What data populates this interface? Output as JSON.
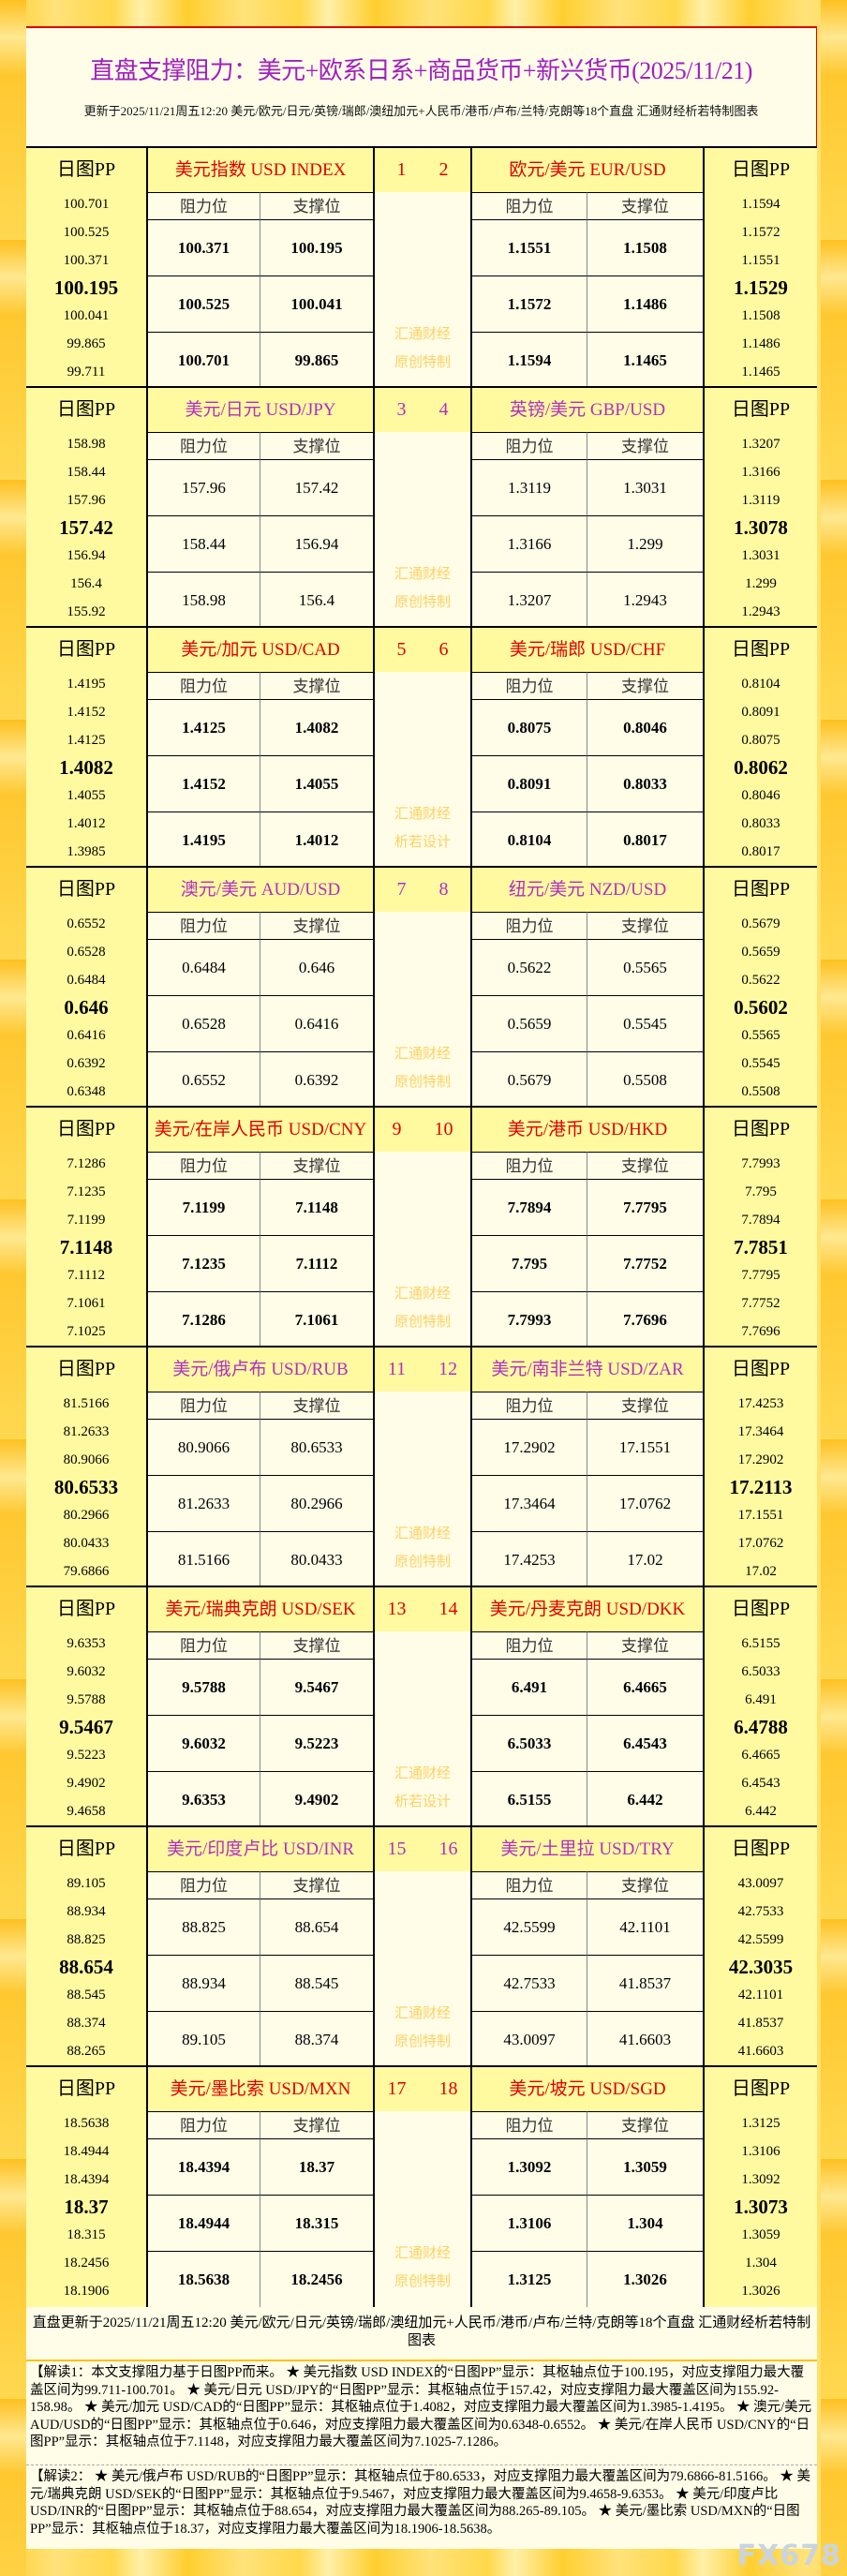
{
  "header": {
    "title": "直盘支撑阻力：美元+欧系日系+商品货币+新兴货币(2025/11/21)",
    "subtitle": "更新于2025/11/21周五12:20 美元/欧元/日元/英镑/瑞郎/澳纽加元+人民币/港币/卢布/兰特/克朗等18个直盘 汇通财经析若特制图表"
  },
  "labels": {
    "pp": "日图PP",
    "res": "阻力位",
    "sup": "支撑位"
  },
  "colors": {
    "odd_title": "#e00000",
    "even_title": "#b030c0",
    "watermark": "#ffd060"
  },
  "blocks": [
    {
      "nums": "1 2",
      "wm": [
        "汇通财经",
        "原创特制"
      ],
      "left": {
        "name": "美元指数 USD INDEX",
        "pp": [
          "100.701",
          "100.525",
          "100.371",
          "100.195",
          "100.041",
          "99.865",
          "99.711"
        ],
        "res": [
          "100.371",
          "100.525",
          "100.701"
        ],
        "sup": [
          "100.195",
          "100.041",
          "99.865"
        ]
      },
      "right": {
        "name": "欧元/美元 EUR/USD",
        "pp": [
          "1.1594",
          "1.1572",
          "1.1551",
          "1.1529",
          "1.1508",
          "1.1486",
          "1.1465"
        ],
        "res": [
          "1.1551",
          "1.1572",
          "1.1594"
        ],
        "sup": [
          "1.1508",
          "1.1486",
          "1.1465"
        ]
      }
    },
    {
      "nums": "3 4",
      "wm": [
        "汇通财经",
        "原创特制"
      ],
      "left": {
        "name": "美元/日元 USD/JPY",
        "pp": [
          "158.98",
          "158.44",
          "157.96",
          "157.42",
          "156.94",
          "156.4",
          "155.92"
        ],
        "res": [
          "157.96",
          "158.44",
          "158.98"
        ],
        "sup": [
          "157.42",
          "156.94",
          "156.4"
        ]
      },
      "right": {
        "name": "英镑/美元 GBP/USD",
        "pp": [
          "1.3207",
          "1.3166",
          "1.3119",
          "1.3078",
          "1.3031",
          "1.299",
          "1.2943"
        ],
        "res": [
          "1.3119",
          "1.3166",
          "1.3207"
        ],
        "sup": [
          "1.3031",
          "1.299",
          "1.2943"
        ]
      }
    },
    {
      "nums": "5 6",
      "wm": [
        "汇通财经",
        "析若设计"
      ],
      "left": {
        "name": "美元/加元 USD/CAD",
        "pp": [
          "1.4195",
          "1.4152",
          "1.4125",
          "1.4082",
          "1.4055",
          "1.4012",
          "1.3985"
        ],
        "res": [
          "1.4125",
          "1.4152",
          "1.4195"
        ],
        "sup": [
          "1.4082",
          "1.4055",
          "1.4012"
        ]
      },
      "right": {
        "name": "美元/瑞郎 USD/CHF",
        "pp": [
          "0.8104",
          "0.8091",
          "0.8075",
          "0.8062",
          "0.8046",
          "0.8033",
          "0.8017"
        ],
        "res": [
          "0.8075",
          "0.8091",
          "0.8104"
        ],
        "sup": [
          "0.8046",
          "0.8033",
          "0.8017"
        ]
      }
    },
    {
      "nums": "7 8",
      "wm": [
        "汇通财经",
        "原创特制"
      ],
      "left": {
        "name": "澳元/美元 AUD/USD",
        "pp": [
          "0.6552",
          "0.6528",
          "0.6484",
          "0.646",
          "0.6416",
          "0.6392",
          "0.6348"
        ],
        "res": [
          "0.6484",
          "0.6528",
          "0.6552"
        ],
        "sup": [
          "0.646",
          "0.6416",
          "0.6392"
        ]
      },
      "right": {
        "name": "纽元/美元 NZD/USD",
        "pp": [
          "0.5679",
          "0.5659",
          "0.5622",
          "0.5602",
          "0.5565",
          "0.5545",
          "0.5508"
        ],
        "res": [
          "0.5622",
          "0.5659",
          "0.5679"
        ],
        "sup": [
          "0.5565",
          "0.5545",
          "0.5508"
        ]
      }
    },
    {
      "nums": "9 10",
      "wm": [
        "汇通财经",
        "原创特制"
      ],
      "left": {
        "name": "美元/在岸人民币 USD/CNY",
        "pp": [
          "7.1286",
          "7.1235",
          "7.1199",
          "7.1148",
          "7.1112",
          "7.1061",
          "7.1025"
        ],
        "res": [
          "7.1199",
          "7.1235",
          "7.1286"
        ],
        "sup": [
          "7.1148",
          "7.1112",
          "7.1061"
        ]
      },
      "right": {
        "name": "美元/港币 USD/HKD",
        "pp": [
          "7.7993",
          "7.795",
          "7.7894",
          "7.7851",
          "7.7795",
          "7.7752",
          "7.7696"
        ],
        "res": [
          "7.7894",
          "7.795",
          "7.7993"
        ],
        "sup": [
          "7.7795",
          "7.7752",
          "7.7696"
        ]
      }
    },
    {
      "nums": "11 12",
      "wm": [
        "汇通财经",
        "原创特制"
      ],
      "left": {
        "name": "美元/俄卢布 USD/RUB",
        "pp": [
          "81.5166",
          "81.2633",
          "80.9066",
          "80.6533",
          "80.2966",
          "80.0433",
          "79.6866"
        ],
        "res": [
          "80.9066",
          "81.2633",
          "81.5166"
        ],
        "sup": [
          "80.6533",
          "80.2966",
          "80.0433"
        ]
      },
      "right": {
        "name": "美元/南非兰特 USD/ZAR",
        "pp": [
          "17.4253",
          "17.3464",
          "17.2902",
          "17.2113",
          "17.1551",
          "17.0762",
          "17.02"
        ],
        "res": [
          "17.2902",
          "17.3464",
          "17.4253"
        ],
        "sup": [
          "17.1551",
          "17.0762",
          "17.02"
        ]
      }
    },
    {
      "nums": "13 14",
      "wm": [
        "汇通财经",
        "析若设计"
      ],
      "left": {
        "name": "美元/瑞典克朗 USD/SEK",
        "pp": [
          "9.6353",
          "9.6032",
          "9.5788",
          "9.5467",
          "9.5223",
          "9.4902",
          "9.4658"
        ],
        "res": [
          "9.5788",
          "9.6032",
          "9.6353"
        ],
        "sup": [
          "9.5467",
          "9.5223",
          "9.4902"
        ]
      },
      "right": {
        "name": "美元/丹麦克朗 USD/DKK",
        "pp": [
          "6.5155",
          "6.5033",
          "6.491",
          "6.4788",
          "6.4665",
          "6.4543",
          "6.442"
        ],
        "res": [
          "6.491",
          "6.5033",
          "6.5155"
        ],
        "sup": [
          "6.4665",
          "6.4543",
          "6.442"
        ]
      }
    },
    {
      "nums": "15 16",
      "wm": [
        "汇通财经",
        "原创特制"
      ],
      "left": {
        "name": "美元/印度卢比 USD/INR",
        "pp": [
          "89.105",
          "88.934",
          "88.825",
          "88.654",
          "88.545",
          "88.374",
          "88.265"
        ],
        "res": [
          "88.825",
          "88.934",
          "89.105"
        ],
        "sup": [
          "88.654",
          "88.545",
          "88.374"
        ]
      },
      "right": {
        "name": "美元/土里拉 USD/TRY",
        "pp": [
          "43.0097",
          "42.7533",
          "42.5599",
          "42.3035",
          "42.1101",
          "41.8537",
          "41.6603"
        ],
        "res": [
          "42.5599",
          "42.7533",
          "43.0097"
        ],
        "sup": [
          "42.1101",
          "41.8537",
          "41.6603"
        ]
      }
    },
    {
      "nums": "17 18",
      "wm": [
        "汇通财经",
        "原创特制"
      ],
      "left": {
        "name": "美元/墨比索 USD/MXN",
        "pp": [
          "18.5638",
          "18.4944",
          "18.4394",
          "18.37",
          "18.315",
          "18.2456",
          "18.1906"
        ],
        "res": [
          "18.4394",
          "18.4944",
          "18.5638"
        ],
        "sup": [
          "18.37",
          "18.315",
          "18.2456"
        ]
      },
      "right": {
        "name": "美元/坡元 USD/SGD",
        "pp": [
          "1.3125",
          "1.3106",
          "1.3092",
          "1.3073",
          "1.3059",
          "1.304",
          "1.3026"
        ],
        "res": [
          "1.3092",
          "1.3106",
          "1.3125"
        ],
        "sup": [
          "1.3059",
          "1.304",
          "1.3026"
        ]
      }
    }
  ],
  "footer": {
    "update": "直盘更新于2025/11/21周五12:20 美元/欧元/日元/英镑/瑞郎/澳纽加元+人民币/港币/卢布/兰特/克朗等18个直盘 汇通财经析若特制图表",
    "note1": "【解读1：本文支撑阻力基于日图PP而来。 ★ 美元指数 USD INDEX的“日图PP”显示：其枢轴点位于100.195，对应支撑阻力最大覆盖区间为99.711-100.701。 ★ 美元/日元 USD/JPY的“日图PP”显示：其枢轴点位于157.42，对应支撑阻力最大覆盖区间为155.92-158.98。 ★ 美元/加元 USD/CAD的“日图PP”显示：其枢轴点位于1.4082，对应支撑阻力最大覆盖区间为1.3985-1.4195。 ★ 澳元/美元 AUD/USD的“日图PP”显示：其枢轴点位于0.646，对应支撑阻力最大覆盖区间为0.6348-0.6552。 ★ 美元/在岸人民币 USD/CNY的“日图PP”显示：其枢轴点位于7.1148，对应支撑阻力最大覆盖区间为7.1025-7.1286。",
    "note2": "【解读2： ★ 美元/俄卢布 USD/RUB的“日图PP”显示：其枢轴点位于80.6533，对应支撑阻力最大覆盖区间为79.6866-81.5166。 ★ 美元/瑞典克朗 USD/SEK的“日图PP”显示：其枢轴点位于9.5467，对应支撑阻力最大覆盖区间为9.4658-9.6353。 ★ 美元/印度卢比 USD/INR的“日图PP”显示：其枢轴点位于88.654，对应支撑阻力最大覆盖区间为88.265-89.105。 ★ 美元/墨比索 USD/MXN的“日图PP”显示：其枢轴点位于18.37，对应支撑阻力最大覆盖区间为18.1906-18.5638。",
    "watermark": "FX678"
  }
}
